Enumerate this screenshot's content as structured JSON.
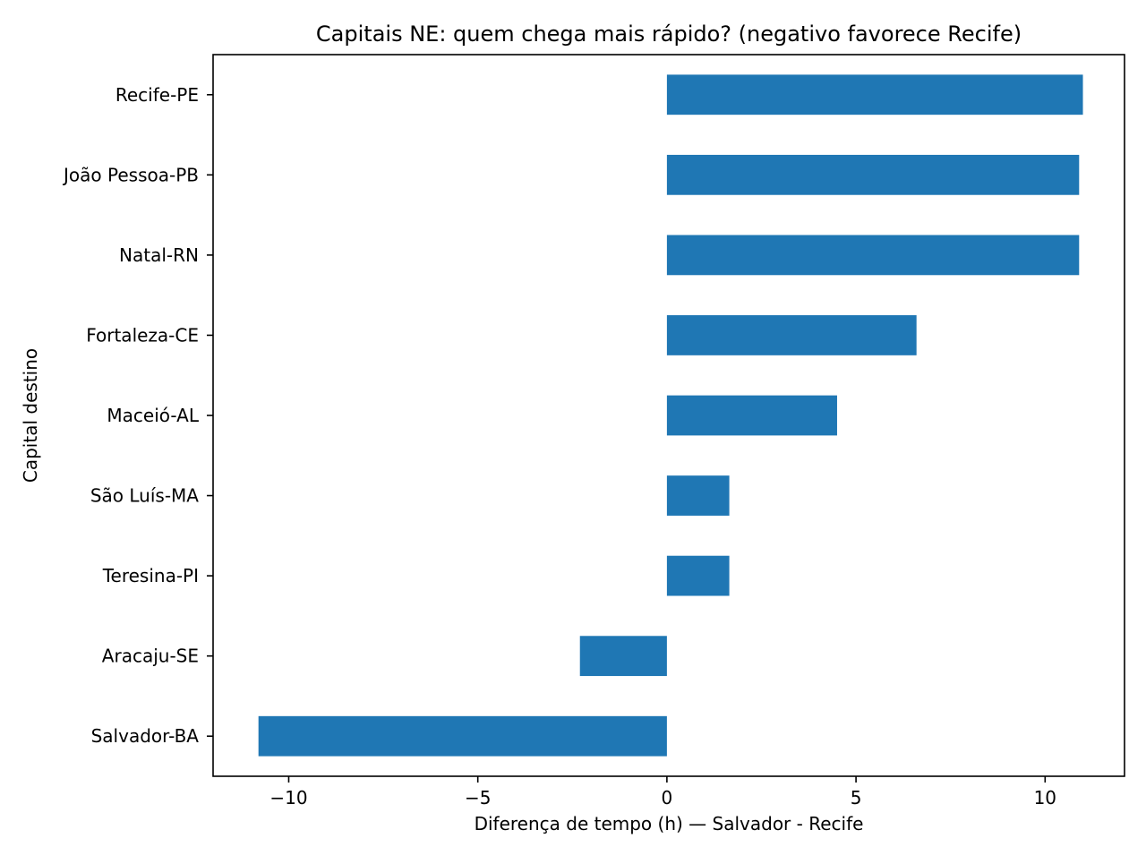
{
  "chart_data": {
    "type": "bar",
    "orientation": "horizontal",
    "title": "Capitais NE: quem chega mais rápido? (negativo favorece Recife)",
    "xlabel": "Diferença de tempo (h) — Salvador - Recife",
    "ylabel": "Capital destino",
    "categories": [
      "Recife-PE",
      "João Pessoa-PB",
      "Natal-RN",
      "Fortaleza-CE",
      "Maceió-AL",
      "São Luís-MA",
      "Teresina-PI",
      "Aracaju-SE",
      "Salvador-BA"
    ],
    "values": [
      11.0,
      10.9,
      10.9,
      6.6,
      4.5,
      1.65,
      1.65,
      -2.3,
      -10.8
    ],
    "xlim": [
      -12,
      12.1
    ],
    "xticks": [
      -10,
      -5,
      0,
      5,
      10
    ],
    "xtick_labels": [
      "−10",
      "−5",
      "0",
      "5",
      "10"
    ],
    "grid": false,
    "legend": "none",
    "colors": {
      "bar": "#1f77b4",
      "axes": "#000000",
      "background": "#ffffff"
    }
  }
}
